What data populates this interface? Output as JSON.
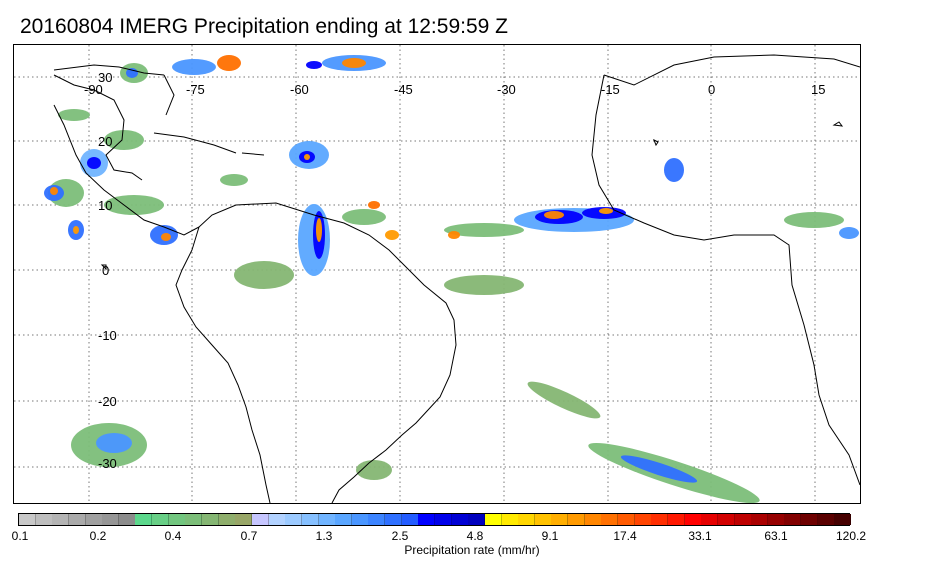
{
  "title": "20160804 IMERG Precipitation ending at 12:59:59 Z",
  "map": {
    "lon_labels": [
      "-90",
      "-75",
      "-60",
      "-45",
      "-30",
      "-15",
      "0",
      "15"
    ],
    "lat_labels": [
      "30",
      "20",
      "10",
      "0",
      "-10",
      "-20",
      "-30"
    ],
    "coastline_color": "#000000",
    "gridline_style": "dotted"
  },
  "colorbar": {
    "title": "Precipitation rate (mm/hr)",
    "labels": [
      "0.1",
      "0.2",
      "0.4",
      "0.7",
      "1.3",
      "2.5",
      "4.8",
      "9.1",
      "17.4",
      "33.1",
      "63.1",
      "120.2"
    ],
    "colors": [
      "#c8c8c8",
      "#bebebe",
      "#b4b4b4",
      "#aaaaaa",
      "#a0a0a0",
      "#969696",
      "#8c8c8c",
      "#5cd88c",
      "#68cf86",
      "#72c67f",
      "#7cbe79",
      "#85b673",
      "#8fae6c",
      "#98a667",
      "#c6c6ff",
      "#b2d2ff",
      "#9ccaff",
      "#86c0ff",
      "#70b4ff",
      "#5aa6ff",
      "#4a96ff",
      "#3c84ff",
      "#2f70ff",
      "#235cff",
      "#0000ff",
      "#0000ea",
      "#0000d4",
      "#0000be",
      "#ffff00",
      "#ffea00",
      "#ffd600",
      "#ffc200",
      "#ffae00",
      "#ff9a00",
      "#ff8600",
      "#ff7000",
      "#ff5a00",
      "#ff4400",
      "#ff2e00",
      "#ff1800",
      "#ff0000",
      "#e60000",
      "#d20000",
      "#be0000",
      "#aa0000",
      "#960000",
      "#820000",
      "#6e0000",
      "#5a0000",
      "#460000"
    ]
  }
}
